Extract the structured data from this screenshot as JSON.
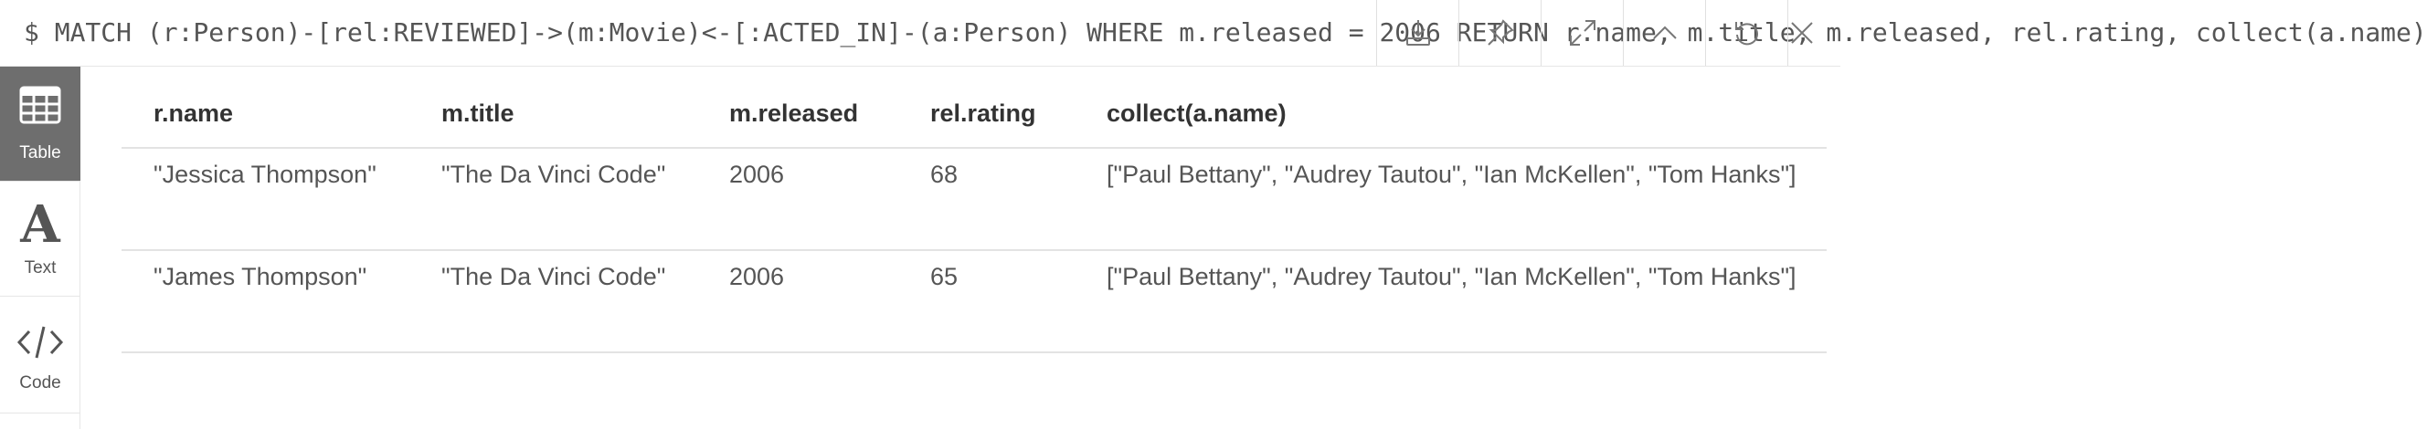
{
  "query": "$ MATCH (r:Person)-[rel:REVIEWED]->(m:Movie)<-[:ACTED_IN]-(a:Person) WHERE m.released = 2006 RETURN r.name, m.title, m.released, rel.rating, collect(a.name)",
  "toolbar": {
    "buttons": [
      {
        "name": "download-icon"
      },
      {
        "name": "pin-icon"
      },
      {
        "name": "expand-icon"
      },
      {
        "name": "collapse-icon"
      },
      {
        "name": "rerun-icon"
      },
      {
        "name": "close-icon"
      }
    ]
  },
  "sidebar": {
    "items": [
      {
        "label": "Table",
        "icon": "table-icon",
        "active": true
      },
      {
        "label": "Text",
        "icon": "text-icon",
        "active": false
      },
      {
        "label": "Code",
        "icon": "code-icon",
        "active": false
      }
    ]
  },
  "table": {
    "columns": [
      "r.name",
      "m.title",
      "m.released",
      "rel.rating",
      "collect(a.name)"
    ],
    "rows": [
      [
        "\"Jessica Thompson\"",
        "\"The Da Vinci Code\"",
        "2006",
        "68",
        "[\"Paul Bettany\", \"Audrey Tautou\", \"Ian McKellen\", \"Tom Hanks\"]"
      ],
      [
        "\"James Thompson\"",
        "\"The Da Vinci Code\"",
        "2006",
        "65",
        "[\"Paul Bettany\", \"Audrey Tautou\", \"Ian McKellen\", \"Tom Hanks\"]"
      ]
    ]
  }
}
